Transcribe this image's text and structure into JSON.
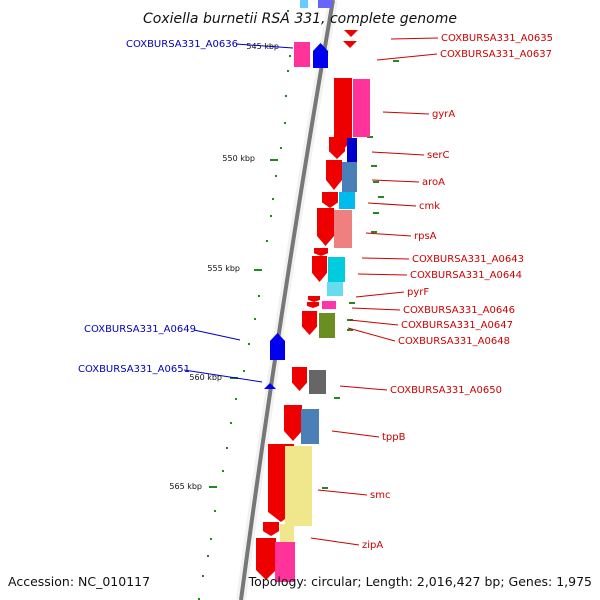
{
  "title": "Coxiella burnetii RSA 331, complete genome",
  "footer": {
    "accession": "Accession: NC_010117",
    "summary": "Topology: circular; Length: 2,016,427 bp; Genes: 1,975"
  },
  "colors": {
    "backbone": "#777777",
    "tick": "#228822",
    "forward_gene": "#ee0000",
    "reverse_gene": "#0000ee",
    "label_right": "#cc0000",
    "label_left": "#0000bb"
  },
  "scale": {
    "unit": "kbp",
    "major_ticks": [
      {
        "kbp": 545,
        "label": "545 kbp"
      },
      {
        "kbp": 550,
        "label": "550 kbp"
      },
      {
        "kbp": 555,
        "label": "555 kbp"
      },
      {
        "kbp": 560,
        "label": "560 kbp"
      },
      {
        "kbp": 565,
        "label": "565 kbp"
      }
    ]
  },
  "gene_labels_right": [
    "COXBURSA331_A0635",
    "COXBURSA331_A0637",
    "gyrA",
    "serC",
    "aroA",
    "cmk",
    "rpsA",
    "COXBURSA331_A0643",
    "COXBURSA331_A0644",
    "pyrF",
    "COXBURSA331_A0646",
    "COXBURSA331_A0647",
    "COXBURSA331_A0648",
    "COXBURSA331_A0650",
    "tppB",
    "smc",
    "zipA"
  ],
  "gene_labels_left": [
    "COXBURSA331_A0636",
    "COXBURSA331_A0649",
    "COXBURSA331_A0651"
  ],
  "legend_icons": [
    "forward-strand-gene",
    "reverse-strand-gene",
    "cog-category-box"
  ]
}
